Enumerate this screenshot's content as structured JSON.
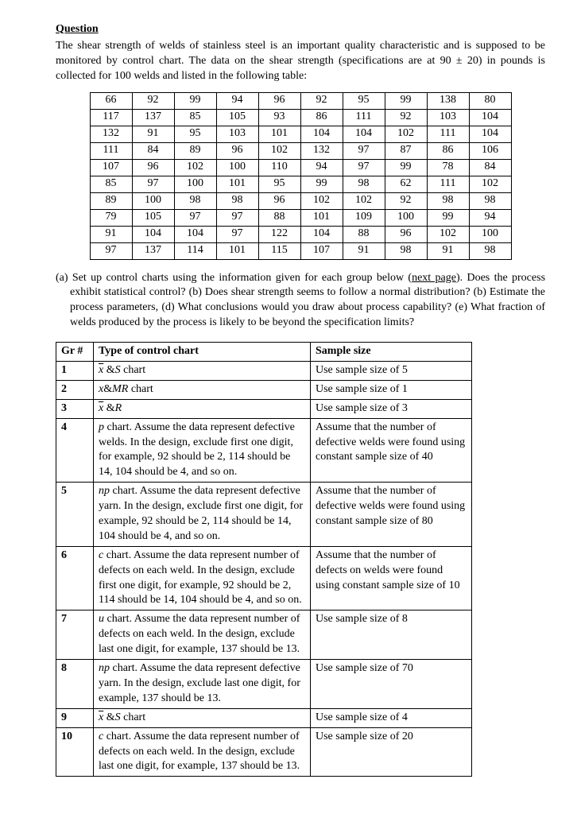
{
  "heading": "Question",
  "intro": "The shear strength of welds of stainless steel is an important quality characteristic and is supposed to be monitored by control chart. The data on the shear strength (specifications are at 90 ± 20) in pounds is collected for 100 welds and listed in the following table:",
  "data_rows": [
    [
      "66",
      "92",
      "99",
      "94",
      "96",
      "92",
      "95",
      "99",
      "138",
      "80"
    ],
    [
      "117",
      "137",
      "85",
      "105",
      "93",
      "86",
      "111",
      "92",
      "103",
      "104"
    ],
    [
      "132",
      "91",
      "95",
      "103",
      "101",
      "104",
      "104",
      "102",
      "111",
      "104"
    ],
    [
      "111",
      "84",
      "89",
      "96",
      "102",
      "132",
      "97",
      "87",
      "86",
      "106"
    ],
    [
      "107",
      "96",
      "102",
      "100",
      "110",
      "94",
      "97",
      "99",
      "78",
      "84"
    ],
    [
      "85",
      "97",
      "100",
      "101",
      "95",
      "99",
      "98",
      "62",
      "111",
      "102"
    ],
    [
      "89",
      "100",
      "98",
      "98",
      "96",
      "102",
      "102",
      "92",
      "98",
      "98"
    ],
    [
      "79",
      "105",
      "97",
      "97",
      "88",
      "101",
      "109",
      "100",
      "99",
      "94"
    ],
    [
      "91",
      "104",
      "104",
      "97",
      "122",
      "104",
      "88",
      "96",
      "102",
      "100"
    ],
    [
      "97",
      "137",
      "114",
      "101",
      "115",
      "107",
      "91",
      "98",
      "91",
      "98"
    ]
  ],
  "subq_a_lead": "(a)",
  "subq_text": "Set up control charts using the information given for each group below (next page). Does the process exhibit statistical control? (b) Does shear strength seems to follow a normal distribution? (b) Estimate the process parameters, (d) What conclusions would you draw about process capability? (e) What fraction of welds produced by the process is likely to be beyond the specification limits?",
  "next_page": "next page",
  "headers": {
    "gr": "Gr #",
    "type": "Type of control chart",
    "size": "Sample size"
  },
  "rows": [
    {
      "gr": "1",
      "type_html": "<span class='xbar'>x</span> &amp;<span class='ital'>S</span> chart",
      "size": "Use sample size of 5"
    },
    {
      "gr": "2",
      "type_html": "<span class='ital'>x</span>&amp;<span class='ital'>MR</span> chart",
      "size": "Use sample size of 1"
    },
    {
      "gr": "3",
      "type_html": "<span class='xbar'>x</span> &amp;<span class='ital'>R</span>",
      "size": "Use sample size of 3"
    },
    {
      "gr": "4",
      "type_html": "<span class='ital'>p</span> chart. Assume the data represent defective welds. In the design, exclude first one digit, for example, 92 should be 2, 114 should be 14, 104 should be 4, and so on.",
      "size": "Assume that the number of defective welds were found using constant sample size of 40"
    },
    {
      "gr": "5",
      "type_html": "<span class='ital'>np</span> chart. Assume the data represent defective yarn. In the design, exclude first one digit, for example, 92 should be 2, 114 should be 14, 104 should be 4, and so on.",
      "size": "Assume that the number of defective welds were found using constant sample size of 80"
    },
    {
      "gr": "6",
      "type_html": "<span class='ital'>c</span> chart. Assume the data represent number of defects on each weld. In the design, exclude first one digit, for example, 92 should be 2, 114 should be 14, 104 should be 4, and so on.",
      "size": "Assume that the number of defects on welds were found using constant sample size of 10"
    },
    {
      "gr": "7",
      "type_html": "<span class='ital'>u</span> chart. Assume the data represent number of defects on each weld. In the design, exclude last one digit, for example, 137 should be 13.",
      "size": "Use sample size of 8"
    },
    {
      "gr": "8",
      "type_html": "<span class='ital'>np</span> chart. Assume the data represent defective yarn. In the design, exclude last one digit, for example, 137 should be 13.",
      "size": "Use sample size of 70"
    },
    {
      "gr": "9",
      "type_html": "<span class='xbar'>x</span> &amp;<span class='ital'>S</span> chart",
      "size": "Use sample size of 4"
    },
    {
      "gr": "10",
      "type_html": "<span class='ital'>c</span> chart. Assume the data represent number of defects on each weld. In the design, exclude last one digit, for example, 137 should be 13.",
      "size": "Use sample size of 20"
    }
  ]
}
